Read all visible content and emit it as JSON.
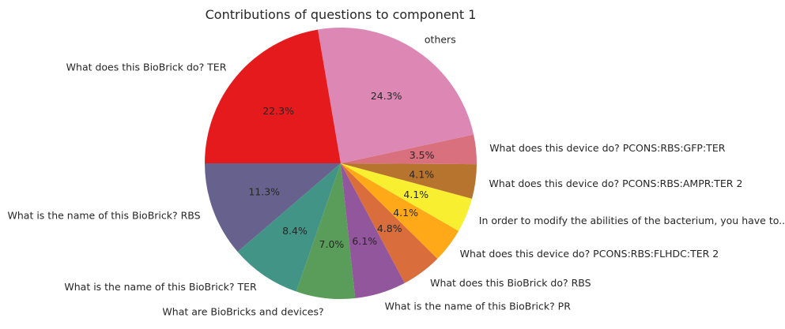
{
  "chart_data": {
    "type": "pie",
    "title": "Contributions of questions to component 1",
    "start_angle_deg": 180,
    "direction": "counterclockwise",
    "slices": [
      {
        "label": "What is the name of this BioBrick? RBS",
        "value": 11.3,
        "pct_label": "11.3%",
        "color": "#66628D"
      },
      {
        "label": "What is the name of this BioBrick? TER",
        "value": 8.4,
        "pct_label": "8.4%",
        "color": "#419486"
      },
      {
        "label": "What are BioBricks and devices?",
        "value": 7.0,
        "pct_label": "7.0%",
        "color": "#5A9D5A"
      },
      {
        "label": "What is the name of this BioBrick? PR",
        "value": 6.1,
        "pct_label": "6.1%",
        "color": "#91569B"
      },
      {
        "label": "What does this BioBrick do? RBS",
        "value": 4.8,
        "pct_label": "4.8%",
        "color": "#D96D3B"
      },
      {
        "label": "What does this device do? PCONS:RBS:FLHDC:TER 2",
        "value": 4.1,
        "pct_label": "4.1%",
        "color": "#FFA919"
      },
      {
        "label": "In order to modify the abilities of the bacterium, you have to...",
        "value": 4.1,
        "pct_label": "4.1%",
        "color": "#F7EF2F"
      },
      {
        "label": "What does this device do? PCONS:RBS:AMPR:TER 2",
        "value": 4.1,
        "pct_label": "4.1%",
        "color": "#B7742F"
      },
      {
        "label": "What does this device do? PCONS:RBS:GFP:TER",
        "value": 3.5,
        "pct_label": "3.5%",
        "color": "#D8707E"
      },
      {
        "label": "others",
        "value": 24.3,
        "pct_label": "24.3%",
        "color": "#DD87B4"
      },
      {
        "label": "What does this BioBrick do? TER",
        "value": 22.3,
        "pct_label": "22.3%",
        "color": "#E41A1C"
      }
    ]
  }
}
